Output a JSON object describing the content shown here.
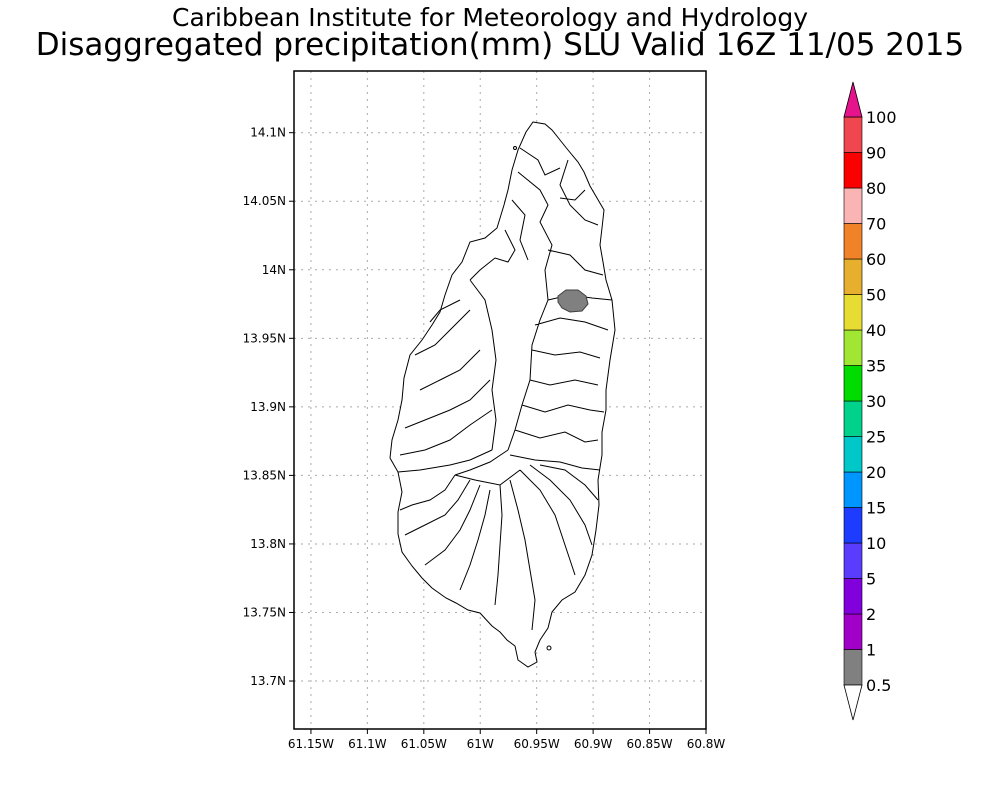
{
  "header": {
    "title": "Caribbean Institute for Meteorology and Hydrology",
    "subtitle": "Disaggregated precipitation(mm) SLU Valid 16Z 11/05 2015"
  },
  "map": {
    "region": "Saint Lucia",
    "lon_range": [
      -61.165,
      -60.8
    ],
    "lat_range": [
      13.665,
      14.145
    ],
    "lon_ticks": [
      {
        "value": -61.15,
        "label": "61.15W"
      },
      {
        "value": -61.1,
        "label": "61.1W"
      },
      {
        "value": -61.05,
        "label": "61.05W"
      },
      {
        "value": -61.0,
        "label": "61W"
      },
      {
        "value": -60.95,
        "label": "60.95W"
      },
      {
        "value": -60.9,
        "label": "60.9W"
      },
      {
        "value": -60.85,
        "label": "60.85W"
      },
      {
        "value": -60.8,
        "label": "60.8W"
      }
    ],
    "lat_ticks": [
      {
        "value": 14.1,
        "label": "14.1N"
      },
      {
        "value": 14.05,
        "label": "14.05N"
      },
      {
        "value": 14.0,
        "label": "14N"
      },
      {
        "value": 13.95,
        "label": "13.95N"
      },
      {
        "value": 13.9,
        "label": "13.9N"
      },
      {
        "value": 13.85,
        "label": "13.85N"
      },
      {
        "value": 13.8,
        "label": "13.8N"
      },
      {
        "value": 13.75,
        "label": "13.75N"
      },
      {
        "value": 13.7,
        "label": "13.7N"
      }
    ],
    "grid": true,
    "precip_area": {
      "lon": -60.914,
      "lat": 13.978,
      "range": "0.5-1",
      "color": "#808080"
    }
  },
  "colorbar": {
    "labels": [
      "0.5",
      "1",
      "2",
      "5",
      "10",
      "15",
      "20",
      "25",
      "30",
      "35",
      "40",
      "50",
      "60",
      "70",
      "80",
      "90",
      "100"
    ],
    "colors": [
      "#808080",
      "#a000c8",
      "#8200dc",
      "#5a3cff",
      "#1e3cff",
      "#0096ff",
      "#00c8c8",
      "#00d28c",
      "#00dc00",
      "#a0e632",
      "#e6dc32",
      "#e6af2d",
      "#f08228",
      "#fab4b4",
      "#fa0000",
      "#f04650"
    ],
    "lower_color": "#ffffff",
    "upper_color": "#e6148c"
  }
}
